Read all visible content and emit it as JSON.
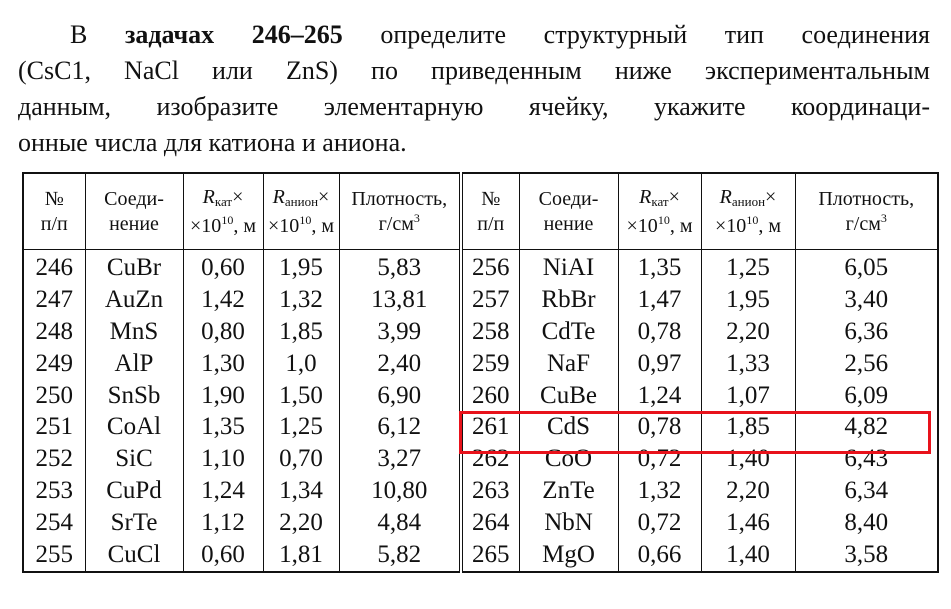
{
  "intro": {
    "start": "В",
    "bold": "задачах 246–265",
    "line1_rest": "определите структурный тип соединения",
    "lines": [
      "(CsC1, NaCl или ZnS) по приведенным ниже экспериментальным",
      "данным, изобразите элементарную ячейку, укажите координаци-",
      "онные числа для катиона и аниона."
    ]
  },
  "table": {
    "header": {
      "num": {
        "line1": "№",
        "line2": "п/п"
      },
      "compound": {
        "line1": "Соеди-",
        "line2": "нение"
      },
      "r_cat": {
        "symbol": "R",
        "sub": "кат",
        "times": "×",
        "base": "×10",
        "exp": "10",
        "unit": ", м"
      },
      "r_an": {
        "symbol": "R",
        "sub": "анион",
        "times": "×",
        "base": "×10",
        "exp": "10",
        "unit": ", м"
      },
      "density": {
        "line1": "Плотность,",
        "line2": "г/см",
        "exp": "3"
      }
    },
    "rows": [
      [
        "246",
        "CuBr",
        "0,60",
        "1,95",
        "5,83",
        "256",
        "NiAI",
        "1,35",
        "1,25",
        "6,05"
      ],
      [
        "247",
        "AuZn",
        "1,42",
        "1,32",
        "13,81",
        "257",
        "RbBr",
        "1,47",
        "1,95",
        "3,40"
      ],
      [
        "248",
        "MnS",
        "0,80",
        "1,85",
        "3,99",
        "258",
        "CdTe",
        "0,78",
        "2,20",
        "6,36"
      ],
      [
        "249",
        "AlP",
        "1,30",
        "1,0",
        "2,40",
        "259",
        "NaF",
        "0,97",
        "1,33",
        "2,56"
      ],
      [
        "250",
        "SnSb",
        "1,90",
        "1,50",
        "6,90",
        "260",
        "CuBe",
        "1,24",
        "1,07",
        "6,09"
      ],
      [
        "251",
        "CoAl",
        "1,35",
        "1,25",
        "6,12",
        "261",
        "CdS",
        "0,78",
        "1,85",
        "4,82"
      ],
      [
        "252",
        "SiC",
        "1,10",
        "0,70",
        "3,27",
        "262",
        "CoO",
        "0,72",
        "1,40",
        "6,43"
      ],
      [
        "253",
        "CuPd",
        "1,24",
        "1,34",
        "10,80",
        "263",
        "ZnTe",
        "1,32",
        "2,20",
        "6,34"
      ],
      [
        "254",
        "SrTe",
        "1,12",
        "2,20",
        "4,84",
        "264",
        "NbN",
        "0,72",
        "1,46",
        "8,40"
      ],
      [
        "255",
        "CuCl",
        "0,60",
        "1,81",
        "5,82",
        "265",
        "MgO",
        "0,66",
        "1,40",
        "3,58"
      ]
    ]
  }
}
